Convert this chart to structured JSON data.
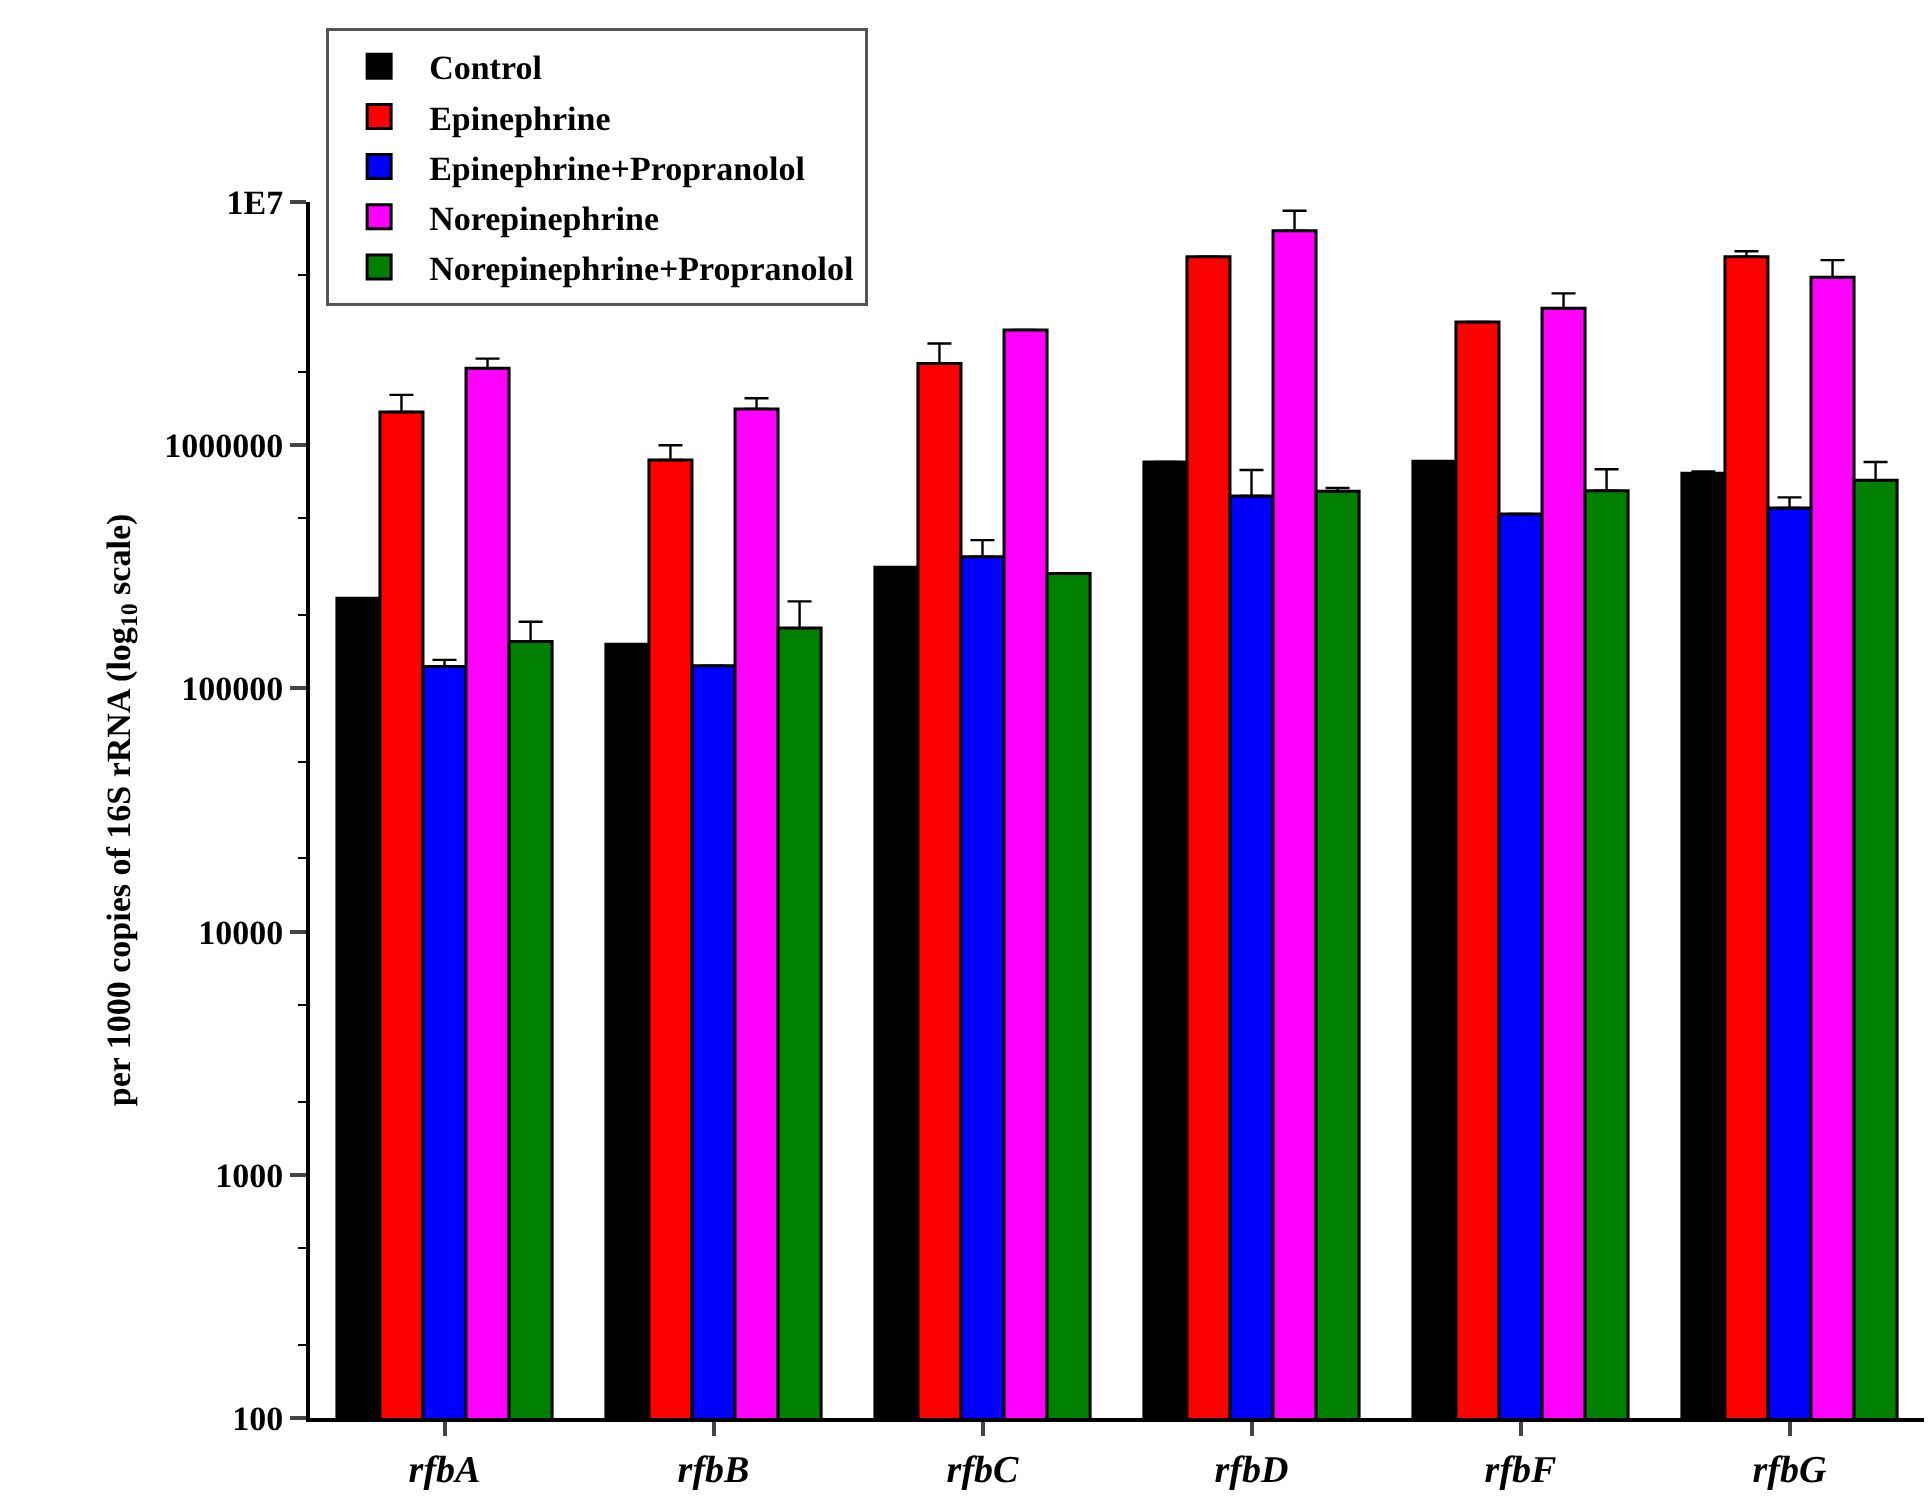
{
  "chart_data": {
    "type": "bar",
    "ylabel": "per 1000 copies of 16S rRNA (log$_{10}$ scale)",
    "categories": [
      "rfbA",
      "rfbB",
      "rfbC",
      "rfbD",
      "rfbF",
      "rfbG"
    ],
    "series": [
      {
        "name": "Control",
        "color": "#000000",
        "values": [
          235000,
          152000,
          315000,
          853000,
          859000,
          766000
        ],
        "errors": [
          null,
          null,
          null,
          null,
          null,
          [
            766000,
            780000
          ]
        ]
      },
      {
        "name": "Epinephrine",
        "color": "#ff0000",
        "values": [
          1370000,
          869000,
          2170000,
          5960000,
          3210000,
          5960000
        ],
        "errors": [
          [
            1370000,
            1610000
          ],
          [
            869000,
            1000000
          ],
          [
            2170000,
            2620000
          ],
          null,
          null,
          [
            5960000,
            6270000
          ]
        ]
      },
      {
        "name": "Epinephrine+Propranolol",
        "color": "#0000ff",
        "values": [
          123000,
          124000,
          348000,
          618000,
          521000,
          552000
        ],
        "errors": [
          [
            123000,
            131000
          ],
          null,
          [
            348000,
            407000
          ],
          [
            618000,
            791000
          ],
          null,
          [
            552000,
            610000
          ]
        ]
      },
      {
        "name": "Norepinephrine",
        "color": "#ff00ff",
        "values": [
          2070000,
          1410000,
          2980000,
          7620000,
          3660000,
          4900000
        ],
        "errors": [
          [
            2070000,
            2270000
          ],
          [
            1410000,
            1560000
          ],
          null,
          [
            7620000,
            9200000
          ],
          [
            3660000,
            4210000
          ],
          [
            4900000,
            5770000
          ]
        ]
      },
      {
        "name": "Norepinephrine+Propranolol",
        "color": "#008000",
        "values": [
          156000,
          177000,
          297000,
          646000,
          650000,
          718000
        ],
        "errors": [
          [
            156000,
            188000
          ],
          [
            177000,
            228000
          ],
          null,
          [
            646000,
            667000
          ],
          [
            650000,
            796000
          ],
          [
            718000,
            853000
          ]
        ]
      }
    ],
    "log": "y",
    "ylim": [
      100,
      10000000
    ],
    "yticks": [
      100,
      1000,
      10000,
      100000,
      1000000,
      {
        "value": 10000000,
        "label": "1E7"
      }
    ],
    "grid": false,
    "legend": "top left"
  }
}
